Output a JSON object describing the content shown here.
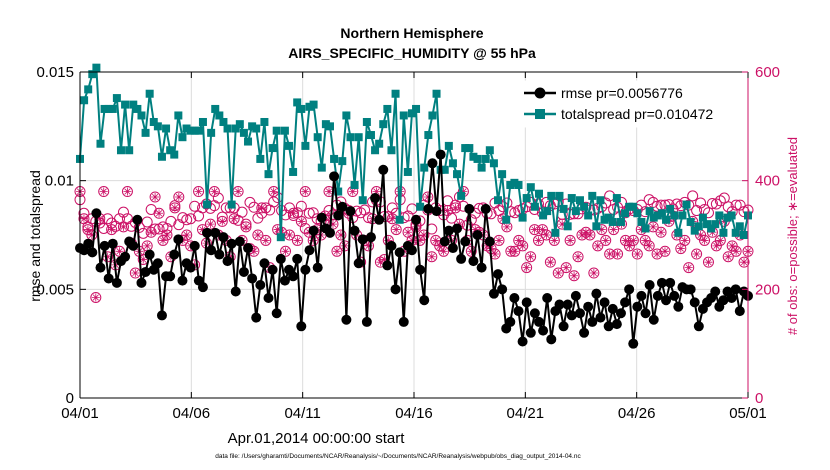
{
  "chart_data": {
    "type": "line",
    "title": "Northern Hemisphere",
    "subtitle": "AIRS_SPECIFIC_HUMIDITY @ 55 hPa",
    "xlabel": "Apr.01,2014 00:00:00 start",
    "ylabel": "rmse and totalspread",
    "y2label": "# of obs: o=possible; ∗=evaluated",
    "footnote": "data file: /Users/gharamti/Documents/NCAR/Reanalysis/~/Documents/NCAR/Reanalysis/webpub/obs_diag_output_2014-04.nc",
    "xlim": [
      0,
      30
    ],
    "ylim": [
      0,
      0.015
    ],
    "y2lim": [
      0,
      600
    ],
    "xticks": [
      0,
      5,
      10,
      15,
      20,
      25,
      30
    ],
    "xticklabels": [
      "04/01",
      "04/06",
      "04/11",
      "04/16",
      "04/21",
      "04/26",
      "05/01"
    ],
    "yticks": [
      0,
      0.005,
      0.01,
      0.015
    ],
    "yticklabels": [
      "0",
      "0.005",
      "0.01",
      "0.015"
    ],
    "y2ticks": [
      0,
      200,
      400,
      600
    ],
    "y2ticklabels": [
      "0",
      "200",
      "400",
      "600"
    ],
    "grid": true,
    "legend_position": "top-right",
    "colors": {
      "rmse": "#000000",
      "spread": "#008080",
      "obs": "#cc1166",
      "axis": "#000000",
      "grid": "#dcdcdc"
    },
    "series": [
      {
        "name": "rmse pr=0.0056776",
        "axis": "left",
        "values": [
          0.0069,
          0.0068,
          0.0071,
          0.0067,
          0.0085,
          0.006,
          0.007,
          0.0055,
          0.0071,
          0.0053,
          0.0063,
          0.0065,
          0.0072,
          0.007,
          0.0082,
          0.0053,
          0.0058,
          0.0066,
          0.0059,
          0.0062,
          0.0038,
          0.0056,
          0.0056,
          0.0066,
          0.0073,
          0.0054,
          0.0062,
          0.006,
          0.007,
          0.0054,
          0.0051,
          0.0076,
          0.0068,
          0.0076,
          0.0066,
          0.0074,
          0.0063,
          0.0071,
          0.0049,
          0.0072,
          0.0058,
          0.0069,
          0.0055,
          0.0037,
          0.0052,
          0.0062,
          0.0046,
          0.0059,
          0.0039,
          0.0064,
          0.0054,
          0.0059,
          0.0056,
          0.0064,
          0.0033,
          0.0059,
          0.0068,
          0.0077,
          0.006,
          0.0083,
          0.0078,
          0.0076,
          0.0102,
          0.0084,
          0.0088,
          0.0036,
          0.0086,
          0.0077,
          0.0062,
          0.0073,
          0.0035,
          0.0074,
          0.0092,
          0.0082,
          0.0105,
          0.0061,
          0.007,
          0.005,
          0.0067,
          0.0035,
          0.007,
          0.0068,
          0.0082,
          0.0059,
          0.0045,
          0.0087,
          0.0108,
          0.0086,
          0.0112,
          0.0072,
          0.0077,
          0.0069,
          0.0078,
          0.0064,
          0.0072,
          0.0087,
          0.0063,
          0.0075,
          0.006,
          0.0087,
          0.0072,
          0.0048,
          0.0057,
          0.005,
          0.0032,
          0.0035,
          0.0046,
          0.004,
          0.0026,
          0.0044,
          0.003,
          0.0039,
          0.0035,
          0.0031,
          0.0046,
          0.0027,
          0.004,
          0.0043,
          0.0033,
          0.0043,
          0.0038,
          0.0047,
          0.0039,
          0.003,
          0.0042,
          0.0035,
          0.0048,
          0.0037,
          0.0044,
          0.0033,
          0.0041,
          0.0034,
          0.0039,
          0.0044,
          0.005,
          0.0025,
          0.0042,
          0.0047,
          0.0039,
          0.0052,
          0.0036,
          0.0047,
          0.0053,
          0.0045,
          0.0053,
          0.0047,
          0.0042,
          0.0051,
          0.005,
          0.005,
          0.0044,
          0.0033,
          0.0041,
          0.0044,
          0.0046,
          0.0049,
          0.0042,
          0.0045,
          0.0049,
          0.0046,
          0.005,
          0.004,
          0.0049,
          0.0047
        ]
      },
      {
        "name": "totalspread pr=0.010472",
        "axis": "left",
        "values": [
          0.011,
          0.0137,
          0.0142,
          0.0149,
          0.0152,
          0.0117,
          0.0133,
          0.0133,
          0.0133,
          0.0138,
          0.0114,
          0.0135,
          0.0114,
          0.0135,
          0.0133,
          0.013,
          0.0122,
          0.014,
          0.0127,
          0.0125,
          0.0111,
          0.0124,
          0.0114,
          0.0112,
          0.013,
          0.012,
          0.0124,
          0.0123,
          0.0123,
          0.0123,
          0.0127,
          0.0089,
          0.0122,
          0.0133,
          0.013,
          0.0127,
          0.0124,
          0.0089,
          0.0124,
          0.0126,
          0.0122,
          0.0118,
          0.0125,
          0.0124,
          0.011,
          0.0127,
          0.0103,
          0.0115,
          0.0123,
          0.0074,
          0.0123,
          0.0116,
          0.0104,
          0.0136,
          0.0133,
          0.0116,
          0.0134,
          0.0135,
          0.012,
          0.0106,
          0.0126,
          0.0125,
          0.011,
          0.0095,
          0.0109,
          0.013,
          0.012,
          0.0098,
          0.012,
          0.0091,
          0.0127,
          0.0121,
          0.0114,
          0.0117,
          0.0126,
          0.0133,
          0.0114,
          0.014,
          0.0082,
          0.013,
          0.0104,
          0.0131,
          0.0133,
          0.0088,
          0.0106,
          0.0121,
          0.013,
          0.014,
          0.0105,
          0.0105,
          0.0116,
          0.0108,
          0.0103,
          0.0093,
          0.0115,
          0.0115,
          0.0111,
          0.011,
          0.0106,
          0.011,
          0.0114,
          0.0108,
          0.0091,
          0.0103,
          0.0082,
          0.0098,
          0.0099,
          0.0098,
          0.0083,
          0.0092,
          0.0097,
          0.0088,
          0.0094,
          0.0084,
          0.0086,
          0.0093,
          0.0076,
          0.0093,
          0.0087,
          0.0079,
          0.0092,
          0.0086,
          0.0091,
          0.0088,
          0.0084,
          0.0093,
          0.0079,
          0.0091,
          0.0082,
          0.0083,
          0.0081,
          0.0092,
          0.0081,
          0.0085,
          0.0088,
          0.0088,
          0.0085,
          0.0081,
          0.0078,
          0.0086,
          0.0083,
          0.0084,
          0.0085,
          0.0082,
          0.0087,
          0.0084,
          0.0076,
          0.0084,
          0.0089,
          0.0081,
          0.0077,
          0.0079,
          0.0083,
          0.008,
          0.0078,
          0.008,
          0.0084,
          0.0076,
          0.0083,
          0.0084,
          0.0076,
          0.0079,
          0.0075,
          0.0084
        ]
      },
      {
        "name": "# of obs possible",
        "axis": "right",
        "marker": "circle",
        "values": [
          365,
          340,
          315,
          330,
          325,
          322,
          312,
          330,
          322,
          316,
          330,
          342,
          330,
          316,
          323,
          314,
          303,
          324,
          347,
          311,
          311,
          315,
          312,
          325,
          354,
          319,
          332,
          328,
          330,
          353,
          335,
          350,
          357,
          349,
          354,
          368,
          333,
          350,
          350,
          350,
          327,
          342,
          320,
          360,
          351,
          331,
          340,
          350,
          346,
          361,
          369,
          345,
          337,
          350,
          336,
          341,
          353,
          312,
          340,
          341,
          330,
          326,
          320,
          345,
          337,
          355,
          361,
          349,
          340,
          332,
          344,
          341,
          346,
          332,
          361,
          364,
          361,
          334,
          334,
          350,
          340,
          365,
          332,
          335,
          348,
          319,
          326,
          355,
          346,
          311,
          350,
          345,
          337,
          363,
          331,
          355,
          370,
          353,
          318,
          328,
          340,
          349,
          350,
          340,
          339,
          359,
          345,
          352,
          359,
          343,
          341,
          345,
          348,
          352,
          360,
          347,
          357,
          341,
          360,
          354,
          357,
          361,
          338,
          357,
          338,
          339,
          339,
          348,
          351,
          346,
          346,
          349,
          352,
          359,
          372,
          347,
          351,
          360,
          341,
          348,
          345,
          347,
          355,
          343,
          365,
          360,
          353,
          355,
          355,
          356,
          348,
          357,
          354,
          360,
          355,
          372,
          345,
          359,
          347,
          341,
          358,
          357,
          363,
          368,
          352,
          343,
          355,
          355,
          343,
          346
        ]
      },
      {
        "name": "# of obs evaluated",
        "axis": "right",
        "marker": "asterisk-circle",
        "values": [
          380,
          330,
          310,
          300,
          185,
          330,
          380,
          260,
          310,
          245,
          270,
          315,
          380,
          285,
          230,
          270,
          255,
          280,
          305,
          370,
          340,
          290,
          300,
          260,
          350,
          370,
          290,
          300,
          280,
          245,
          380,
          310,
          285,
          320,
          380,
          300,
          325,
          290,
          260,
          330,
          380,
          290,
          315,
          275,
          270,
          300,
          350,
          290,
          240,
          380,
          310,
          305,
          270,
          300,
          340,
          290,
          325,
          380,
          305,
          290,
          310,
          300,
          335,
          380,
          320,
          270,
          300,
          280,
          345,
          380,
          300,
          250,
          290,
          280,
          330,
          380,
          250,
          255,
          290,
          330,
          310,
          380,
          270,
          305,
          290,
          315,
          290,
          300,
          370,
          260,
          290,
          280,
          270,
          345,
          290,
          350,
          320,
          380,
          290,
          270,
          310,
          305,
          300,
          280,
          275,
          265,
          290,
          330,
          315,
          270,
          270,
          290,
          280,
          240,
          260,
          310,
          290,
          310,
          300,
          250,
          290,
          230,
          320,
          240,
          290,
          225,
          260,
          300,
          305,
          300,
          230,
          280,
          310,
          290,
          265,
          310,
          265,
          320,
          290,
          280,
          290,
          265,
          310,
          290,
          280,
          315,
          265,
          305,
          270,
          325,
          335,
          300,
          275,
          290,
          240,
          325,
          265,
          300,
          290,
          250,
          305,
          280,
          290,
          325,
          260,
          280,
          270,
          300,
          250,
          270
        ]
      }
    ]
  }
}
